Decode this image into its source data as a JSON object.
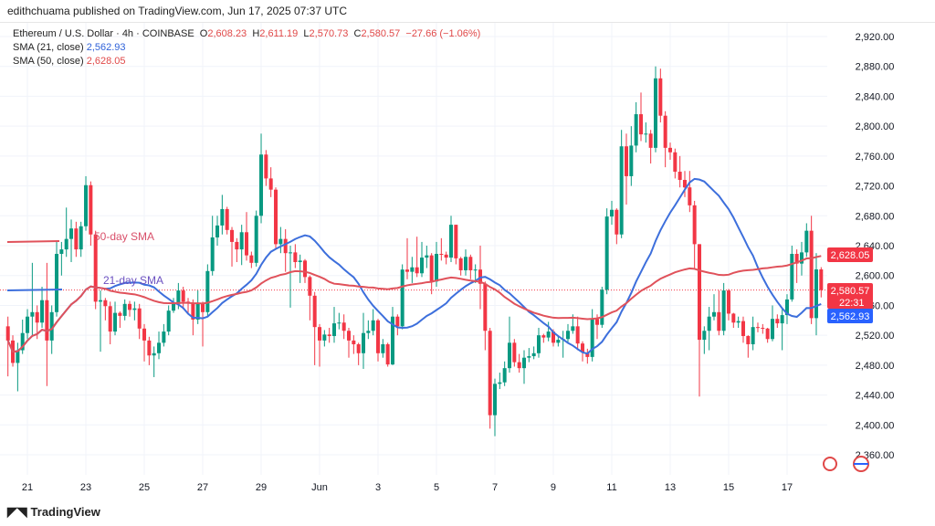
{
  "publisher_line": "edithchuama published on TradingView.com, Jun 17, 2025 07:37 UTC",
  "legend": {
    "symbol": "Ethereum / U.S. Dollar · 4h · COINBASE",
    "o_label": "O",
    "o": "2,608.23",
    "h_label": "H",
    "h": "2,611.19",
    "l_label": "L",
    "l": "2,570.73",
    "c_label": "C",
    "c": "2,580.57",
    "change": "−27.66 (−1.06%)",
    "sma21_label": "SMA (21, close)",
    "sma21": "2,562.93",
    "sma50_label": "SMA (50, close)",
    "sma50": "2,628.05"
  },
  "price_tags": {
    "sma50": "2,628.05",
    "last": "2,580.57",
    "countdown": "22:31",
    "sma21": "2,562.93"
  },
  "annotations": {
    "sma50": "50-day SMA",
    "sma21": "21-day SMA"
  },
  "logo_text": "TradingView",
  "colors": {
    "up": "#089981",
    "down": "#f23645",
    "sma21": "#3d6fdc",
    "sma50": "#e0525b",
    "annotation21": "#6a4fc0"
  },
  "chart_data": {
    "type": "candlestick",
    "interval": "4h",
    "ylim": [
      2340,
      2940
    ],
    "y_ticks": [
      "2,360.00",
      "2,400.00",
      "2,440.00",
      "2,480.00",
      "2,520.00",
      "2,560.00",
      "2,600.00",
      "2,640.00",
      "2,680.00",
      "2,720.00",
      "2,760.00",
      "2,800.00",
      "2,840.00",
      "2,880.00",
      "2,920.00"
    ],
    "x_ticks": [
      "21",
      "23",
      "25",
      "27",
      "29",
      "Jun",
      "3",
      "5",
      "7",
      "9",
      "11",
      "13",
      "15",
      "17"
    ],
    "grid": true,
    "first_open": 2532,
    "close": [
      2513,
      2483,
      2500,
      2523,
      2545,
      2551,
      2537,
      2567,
      2513,
      2551,
      2629,
      2635,
      2649,
      2663,
      2635,
      2666,
      2721,
      2655,
      2565,
      2567,
      2559,
      2525,
      2550,
      2546,
      2562,
      2554,
      2556,
      2529,
      2513,
      2493,
      2496,
      2510,
      2525,
      2553,
      2562,
      2580,
      2565,
      2563,
      2541,
      2563,
      2551,
      2606,
      2651,
      2667,
      2689,
      2661,
      2645,
      2635,
      2658,
      2627,
      2617,
      2680,
      2762,
      2730,
      2715,
      2642,
      2649,
      2630,
      2631,
      2618,
      2620,
      2598,
      2573,
      2531,
      2513,
      2521,
      2519,
      2536,
      2537,
      2526,
      2513,
      2508,
      2496,
      2523,
      2526,
      2540,
      2496,
      2508,
      2481,
      2545,
      2532,
      2608,
      2605,
      2611,
      2603,
      2624,
      2627,
      2592,
      2629,
      2628,
      2624,
      2668,
      2623,
      2607,
      2625,
      2607,
      2608,
      2589,
      2526,
      2413,
      2455,
      2457,
      2476,
      2510,
      2484,
      2476,
      2490,
      2492,
      2496,
      2520,
      2517,
      2525,
      2510,
      2514,
      2515,
      2526,
      2532,
      2509,
      2497,
      2491,
      2542,
      2534,
      2581,
      2679,
      2688,
      2655,
      2773,
      2733,
      2774,
      2816,
      2789,
      2790,
      2771,
      2864,
      2814,
      2771,
      2765,
      2739,
      2728,
      2718,
      2694,
      2642,
      2514,
      2526,
      2545,
      2551,
      2526,
      2580,
      2549,
      2537,
      2539,
      2519,
      2508,
      2531,
      2530,
      2529,
      2515,
      2542,
      2536,
      2547,
      2568,
      2629,
      2616,
      2631,
      2660,
      2543,
      2608.23,
      2580.57
    ],
    "high": [
      2545,
      2520,
      2510,
      2541,
      2555,
      2617,
      2560,
      2585,
      2617,
      2560,
      2645,
      2645,
      2691,
      2675,
      2672,
      2672,
      2733,
      2726,
      2660,
      2580,
      2570,
      2565,
      2565,
      2552,
      2568,
      2566,
      2565,
      2562,
      2535,
      2518,
      2505,
      2525,
      2535,
      2560,
      2570,
      2590,
      2585,
      2570,
      2568,
      2580,
      2565,
      2615,
      2680,
      2680,
      2708,
      2692,
      2665,
      2650,
      2668,
      2685,
      2632,
      2687,
      2790,
      2768,
      2745,
      2718,
      2665,
      2662,
      2640,
      2642,
      2628,
      2622,
      2600,
      2578,
      2535,
      2527,
      2530,
      2558,
      2550,
      2548,
      2530,
      2520,
      2510,
      2550,
      2540,
      2555,
      2542,
      2515,
      2510,
      2558,
      2548,
      2615,
      2650,
      2625,
      2652,
      2645,
      2640,
      2630,
      2645,
      2650,
      2632,
      2680,
      2668,
      2625,
      2635,
      2628,
      2615,
      2640,
      2592,
      2530,
      2462,
      2470,
      2485,
      2545,
      2515,
      2495,
      2500,
      2503,
      2505,
      2530,
      2522,
      2538,
      2528,
      2520,
      2526,
      2535,
      2548,
      2545,
      2512,
      2502,
      2555,
      2548,
      2585,
      2690,
      2700,
      2690,
      2795,
      2790,
      2800,
      2832,
      2845,
      2805,
      2795,
      2880,
      2877,
      2820,
      2778,
      2770,
      2760,
      2740,
      2740,
      2700,
      2642,
      2532,
      2558,
      2575,
      2580,
      2590,
      2582,
      2550,
      2545,
      2545,
      2520,
      2545,
      2537,
      2535,
      2530,
      2560,
      2548,
      2555,
      2575,
      2640,
      2635,
      2645,
      2670,
      2680,
      2630,
      2611.19
    ],
    "low": [
      2465,
      2478,
      2445,
      2495,
      2515,
      2520,
      2515,
      2530,
      2452,
      2495,
      2545,
      2600,
      2625,
      2618,
      2625,
      2625,
      2660,
      2640,
      2555,
      2498,
      2540,
      2508,
      2520,
      2530,
      2540,
      2545,
      2540,
      2515,
      2485,
      2480,
      2464,
      2488,
      2505,
      2520,
      2550,
      2555,
      2555,
      2550,
      2520,
      2535,
      2505,
      2545,
      2600,
      2640,
      2655,
      2655,
      2612,
      2618,
      2614,
      2620,
      2610,
      2612,
      2670,
      2720,
      2705,
      2635,
      2630,
      2605,
      2557,
      2610,
      2590,
      2590,
      2540,
      2480,
      2478,
      2505,
      2510,
      2510,
      2528,
      2515,
      2490,
      2495,
      2480,
      2475,
      2515,
      2520,
      2485,
      2490,
      2478,
      2480,
      2520,
      2528,
      2595,
      2590,
      2598,
      2598,
      2610,
      2575,
      2585,
      2620,
      2615,
      2618,
      2615,
      2600,
      2600,
      2595,
      2590,
      2555,
      2500,
      2395,
      2385,
      2448,
      2452,
      2470,
      2478,
      2470,
      2455,
      2484,
      2488,
      2490,
      2510,
      2512,
      2505,
      2505,
      2490,
      2510,
      2522,
      2500,
      2485,
      2482,
      2485,
      2515,
      2530,
      2575,
      2668,
      2642,
      2650,
      2695,
      2720,
      2765,
      2780,
      2778,
      2750,
      2765,
      2805,
      2745,
      2755,
      2730,
      2718,
      2705,
      2685,
      2610,
      2438,
      2495,
      2500,
      2540,
      2520,
      2520,
      2540,
      2530,
      2530,
      2510,
      2490,
      2500,
      2524,
      2522,
      2510,
      2512,
      2530,
      2500,
      2535,
      2565,
      2590,
      2600,
      2625,
      2535,
      2520,
      2570.73
    ],
    "series": [
      {
        "name": "SMA (21, close)"
      },
      {
        "name": "SMA (50, close)"
      }
    ]
  }
}
